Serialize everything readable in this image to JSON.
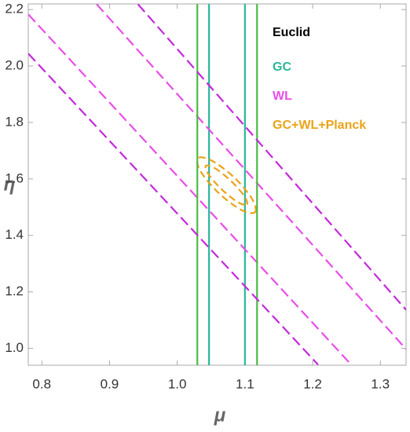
{
  "chart_data": {
    "type": "line",
    "xlabel": "μ",
    "ylabel": "η",
    "xlim": [
      0.78,
      1.338
    ],
    "ylim": [
      0.94,
      2.22
    ],
    "xticks": [
      0.8,
      0.9,
      {
        "value": 1.0,
        "label": "1.0"
      },
      1.1,
      1.2,
      1.3
    ],
    "yticks": [
      {
        "value": 1.0,
        "label": "1.0"
      },
      1.2,
      1.4,
      1.6,
      1.8,
      {
        "value": 2.0,
        "label": "2.0"
      },
      2.2
    ],
    "legend_title": "Euclid",
    "legend": "upper right",
    "series": [
      {
        "name": "GC",
        "color": "#2ab79a",
        "dashed": false,
        "x": [
          1.047,
          1.047,
          null,
          1.1,
          1.1
        ],
        "y": [
          0.94,
          2.22,
          null,
          0.94,
          2.22
        ]
      },
      {
        "name": "WL",
        "color": "#e94de8",
        "dashed": true,
        "x": [
          0.78,
          1.257,
          null,
          0.881,
          1.338
        ],
        "y": [
          2.183,
          0.942,
          null,
          2.219,
          0.997
        ]
      },
      {
        "name": "GC+WL+Planck",
        "color": "#e9a319",
        "dashed": true,
        "closed": true,
        "x": [
          1.1149,
          1.1103,
          1.0838,
          1.0507,
          1.0304,
          1.0349,
          1.0615,
          1.0945,
          null,
          1.103,
          1.0986,
          1.079,
          1.0557,
          1.0422,
          1.0466,
          1.0662,
          1.0896
        ],
        "y": [
          1.4822,
          1.5303,
          1.6061,
          1.6653,
          1.6733,
          1.6253,
          1.5494,
          1.4903,
          null,
          1.5092,
          1.5406,
          1.5939,
          1.6378,
          1.6464,
          1.615,
          1.5617,
          1.5178
        ]
      },
      {
        "color": "#4cba45",
        "dashed": false,
        "x": [
          1.0297,
          1.0297,
          null,
          1.1179,
          1.1179
        ],
        "y": [
          0.94,
          2.22,
          null,
          0.94,
          2.22
        ]
      },
      {
        "color": "#c22ad9",
        "dashed": true,
        "x": [
          0.78,
          1.208,
          null,
          0.942,
          1.338
        ],
        "y": [
          2.044,
          0.942,
          null,
          2.219,
          1.136
        ]
      }
    ]
  }
}
